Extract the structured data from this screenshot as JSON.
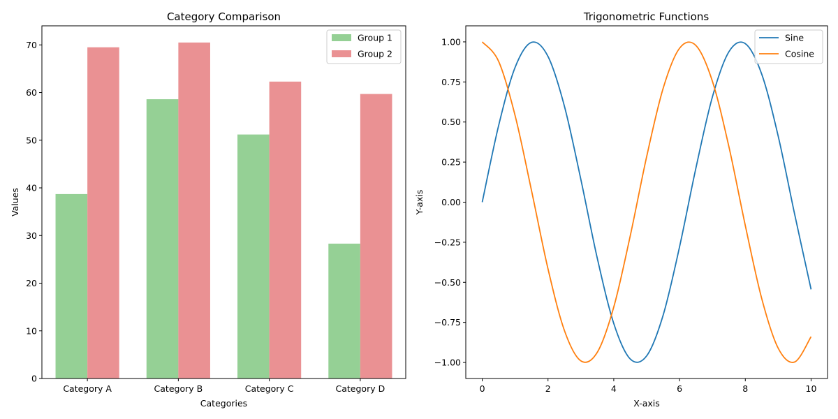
{
  "chart_data": [
    {
      "type": "bar",
      "title": "Category Comparison",
      "xlabel": "Categories",
      "ylabel": "Values",
      "categories": [
        "Category A",
        "Category B",
        "Category C",
        "Category D"
      ],
      "series": [
        {
          "name": "Group 1",
          "values": [
            38.7,
            58.6,
            51.2,
            28.3
          ],
          "color": "#95d095"
        },
        {
          "name": "Group 2",
          "values": [
            69.5,
            70.5,
            62.3,
            59.7
          ],
          "color": "#ea9193"
        }
      ],
      "ylim": [
        0,
        74
      ],
      "yticks": [
        0,
        10,
        20,
        30,
        40,
        50,
        60,
        70
      ],
      "ytick_labels": [
        "0",
        "10",
        "20",
        "30",
        "40",
        "50",
        "60",
        "70"
      ],
      "legend": "top-right",
      "grid": false
    },
    {
      "type": "line",
      "title": "Trigonometric Functions",
      "xlabel": "X-axis",
      "ylabel": "Y-axis",
      "x": [
        0,
        0.5,
        1,
        1.5,
        2,
        2.5,
        3,
        3.5,
        4,
        4.5,
        5,
        5.5,
        6,
        6.5,
        7,
        7.5,
        8,
        8.5,
        9,
        9.5,
        10
      ],
      "series": [
        {
          "name": "Sine",
          "color": "#1f77b4",
          "values": [
            0,
            0.479,
            0.841,
            0.997,
            0.909,
            0.598,
            0.141,
            -0.351,
            -0.757,
            -0.978,
            -0.959,
            -0.706,
            -0.279,
            0.215,
            0.657,
            0.938,
            0.989,
            0.798,
            0.412,
            -0.075,
            -0.544
          ]
        },
        {
          "name": "Cosine",
          "color": "#ff7f0e",
          "values": [
            1,
            0.878,
            0.54,
            0.071,
            -0.416,
            -0.801,
            -0.99,
            -0.936,
            -0.654,
            -0.211,
            0.284,
            0.709,
            0.96,
            0.977,
            0.754,
            0.347,
            -0.146,
            -0.602,
            -0.911,
            -0.997,
            -0.839
          ]
        }
      ],
      "xlim": [
        -0.5,
        10.5
      ],
      "ylim": [
        -1.1,
        1.1
      ],
      "xticks": [
        0,
        2,
        4,
        6,
        8,
        10
      ],
      "xtick_labels": [
        "0",
        "2",
        "4",
        "6",
        "8",
        "10"
      ],
      "yticks": [
        1,
        0.75,
        0.5,
        0.25,
        0,
        -0.25,
        -0.5,
        -0.75,
        -1
      ],
      "ytick_labels": [
        "1.00",
        "0.75",
        "0.50",
        "0.25",
        "0.00",
        "−0.25",
        "−0.50",
        "−0.75",
        "−1.00"
      ],
      "legend": "top-right",
      "grid": false
    }
  ]
}
